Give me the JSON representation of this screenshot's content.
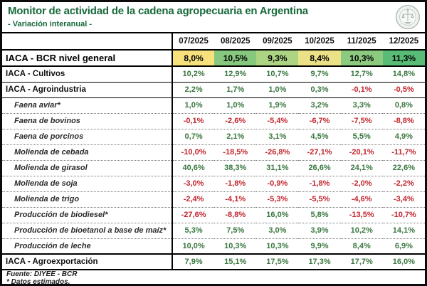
{
  "header": {
    "title": "Monitor de actividad de la cadena agropecuaria en Argentina",
    "subtitle": "- Variación interanual -",
    "logo": "bcr-seal"
  },
  "colors": {
    "title_green": "#17693B",
    "positive": "#39773F",
    "negative": "#C2262E",
    "grid": "#000000"
  },
  "table": {
    "columns": [
      "07/2025",
      "08/2025",
      "09/2025",
      "10/2025",
      "11/2025",
      "12/2025"
    ],
    "rows": [
      {
        "label": "IACA - BCR nivel general",
        "style": "general",
        "values": [
          "8,0%",
          "10,5%",
          "9,3%",
          "8,4%",
          "10,3%",
          "11,3%"
        ],
        "cell_colors": [
          "#F6E17D",
          "#85C87E",
          "#ACD483",
          "#EBE287",
          "#8CCA80",
          "#58BB76"
        ]
      },
      {
        "label": "IACA - Cultivos",
        "style": "section",
        "values": [
          "10,2%",
          "12,9%",
          "10,7%",
          "9,7%",
          "12,7%",
          "14,8%"
        ]
      },
      {
        "label": "IACA - Agroindustria",
        "style": "section",
        "values": [
          "2,2%",
          "1,7%",
          "1,0%",
          "0,3%",
          "-0,1%",
          "-0,5%"
        ]
      },
      {
        "label": "Faena aviar*",
        "style": "sub",
        "values": [
          "1,0%",
          "1,0%",
          "1,9%",
          "3,2%",
          "3,3%",
          "0,8%"
        ]
      },
      {
        "label": "Faena de bovinos",
        "style": "sub",
        "values": [
          "-0,1%",
          "-2,6%",
          "-5,4%",
          "-6,7%",
          "-7,5%",
          "-8,8%"
        ]
      },
      {
        "label": "Faena de porcinos",
        "style": "sub",
        "values": [
          "0,7%",
          "2,1%",
          "3,1%",
          "4,5%",
          "5,5%",
          "4,9%"
        ]
      },
      {
        "label": "Molienda de cebada",
        "style": "sub",
        "values": [
          "-10,0%",
          "-18,5%",
          "-26,8%",
          "-27,1%",
          "-20,1%",
          "-11,7%"
        ]
      },
      {
        "label": "Molienda de girasol",
        "style": "sub",
        "values": [
          "40,6%",
          "38,3%",
          "31,1%",
          "26,6%",
          "24,1%",
          "22,6%"
        ]
      },
      {
        "label": "Molienda de soja",
        "style": "sub",
        "values": [
          "-3,0%",
          "-1,8%",
          "-0,9%",
          "-1,8%",
          "-2,0%",
          "-2,2%"
        ]
      },
      {
        "label": "Molienda de trigo",
        "style": "sub",
        "values": [
          "-2,4%",
          "-4,1%",
          "-5,3%",
          "-5,5%",
          "-4,6%",
          "-3,4%"
        ]
      },
      {
        "label": "Producción de biodiesel*",
        "style": "sub",
        "values": [
          "-27,6%",
          "-8,8%",
          "16,0%",
          "5,8%",
          "-13,5%",
          "-10,7%"
        ]
      },
      {
        "label": "Producción de bioetanol a base de maíz*",
        "style": "sub",
        "values": [
          "5,3%",
          "7,5%",
          "3,0%",
          "3,9%",
          "10,2%",
          "14,1%"
        ]
      },
      {
        "label": "Producción de leche",
        "style": "sub",
        "values": [
          "10,0%",
          "10,3%",
          "10,3%",
          "9,9%",
          "8,4%",
          "6,9%"
        ]
      },
      {
        "label": "IACA - Agroexportación",
        "style": "total",
        "values": [
          "7,9%",
          "15,1%",
          "17,5%",
          "17,3%",
          "17,7%",
          "16,0%"
        ]
      }
    ]
  },
  "footer": {
    "source": "Fuente: DIYEE - BCR",
    "note": "* Datos estimados."
  }
}
